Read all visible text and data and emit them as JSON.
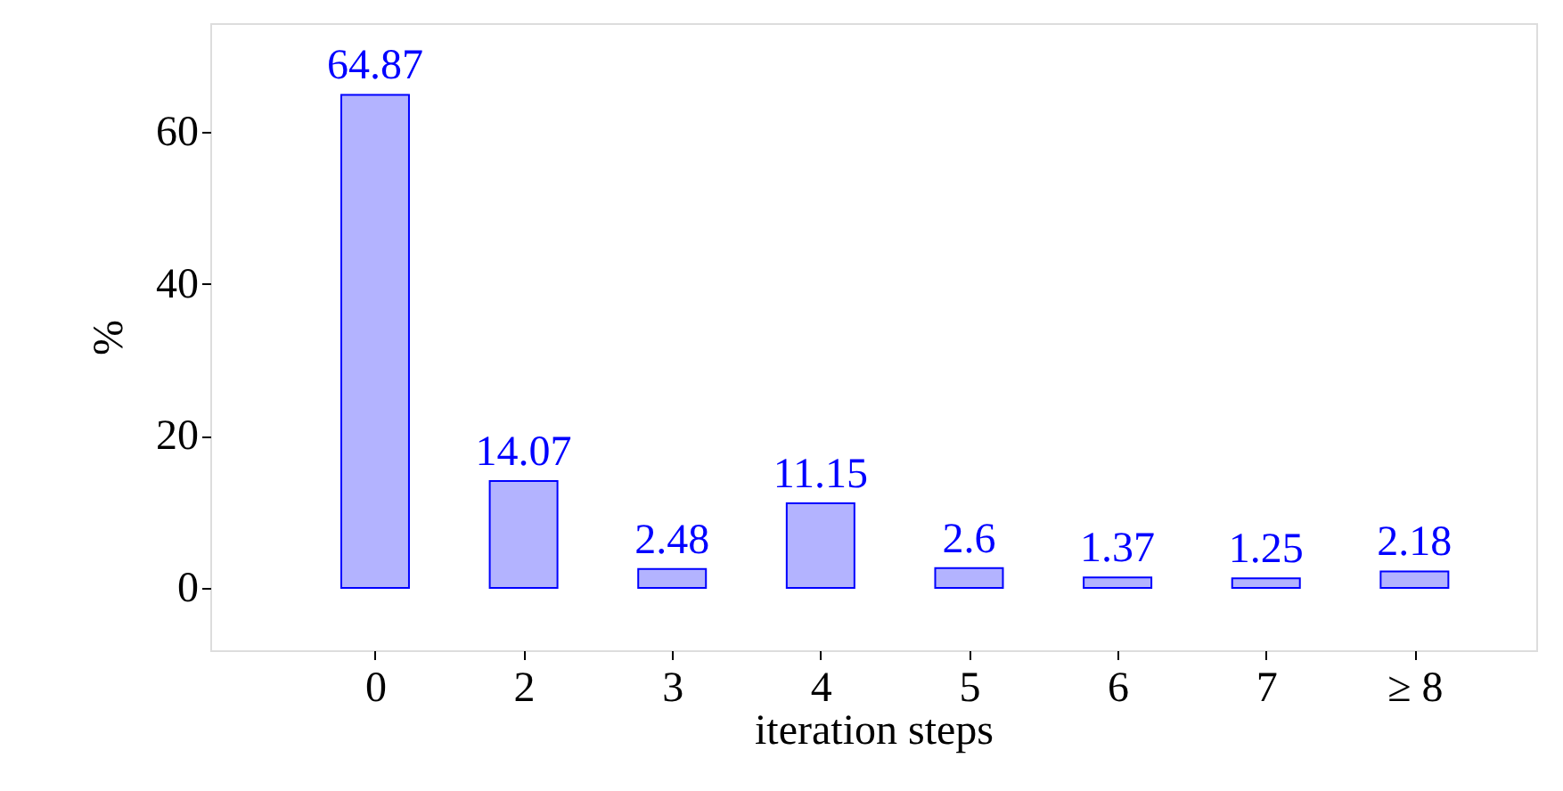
{
  "chart_data": {
    "type": "bar",
    "xlabel": "iteration steps",
    "ylabel": "%",
    "categories": [
      "0",
      "2",
      "3",
      "4",
      "5",
      "6",
      "7",
      "≥ 8"
    ],
    "values": [
      64.87,
      14.07,
      2.48,
      11.15,
      2.6,
      1.37,
      1.25,
      2.18
    ],
    "color": "#b3b3ff",
    "ylim": [
      -8.2,
      74.3
    ],
    "yticks": [
      0,
      20,
      40,
      60
    ],
    "data_labels": true,
    "grid": false
  }
}
